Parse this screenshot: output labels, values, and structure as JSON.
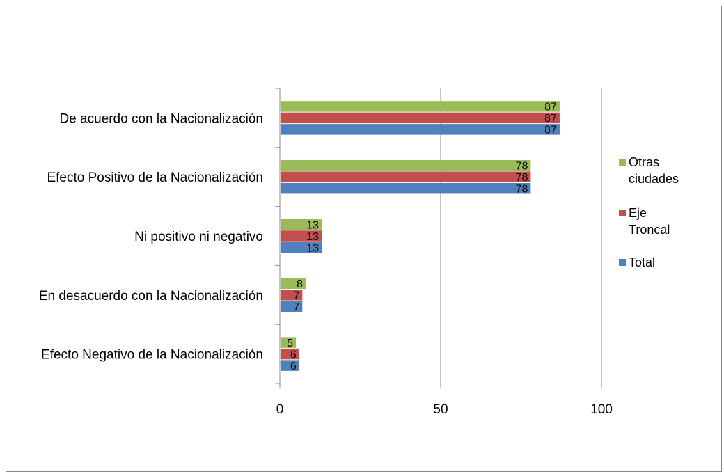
{
  "chart_data": {
    "type": "bar",
    "orientation": "horizontal",
    "categories": [
      "De acuerdo con la Nacionalización",
      "Efecto Positivo de la Nacionalización",
      "Ni positivo ni negativo",
      "En desacuerdo con la Nacionalización",
      "Efecto Negativo de la Nacionalización"
    ],
    "series": [
      {
        "name": "Otras ciudades",
        "color": "#9bbb59",
        "values": [
          87,
          78,
          13,
          8,
          5
        ]
      },
      {
        "name": "Eje Troncal",
        "color": "#c0504d",
        "values": [
          87,
          78,
          13,
          7,
          6
        ]
      },
      {
        "name": "Total",
        "color": "#4f81bd",
        "values": [
          87,
          78,
          13,
          7,
          6
        ]
      }
    ],
    "xlim": [
      0,
      100
    ],
    "xticks": [
      "0",
      "50",
      "100"
    ],
    "grid": true,
    "legend": "right",
    "legend_lines": [
      [
        "Otras",
        "ciudades"
      ],
      [
        "Eje",
        "Troncal"
      ],
      [
        "Total"
      ]
    ],
    "title": "",
    "xlabel": "",
    "ylabel": ""
  }
}
